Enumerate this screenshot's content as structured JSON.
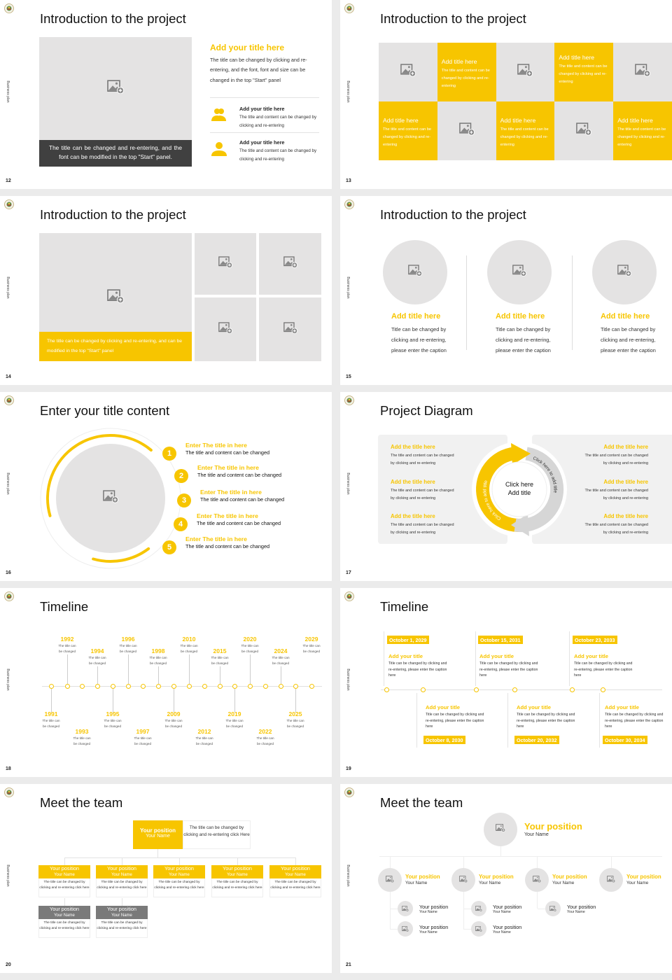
{
  "chrome": {
    "side_label": "Business plan"
  },
  "colors": {
    "accent": "#f7c500",
    "placeholder": "#e4e3e3",
    "dark_caption": "#404040",
    "gray_header": "#7a7a7a"
  },
  "slides": [
    {
      "number": "12",
      "title": "Introduction to the project",
      "caption": "The title can be changed and re-entering, and the font can be modified in the top \"Start\" panel.",
      "heading": "Add your title here",
      "body": "The title can be changed by clicking and re-entering, and the font, font and size can be changed in the top \"Start\" panel",
      "items": [
        {
          "icon": "group-icon",
          "title": "Add your title here",
          "text": "The title and content can be changed by clicking and re-entering"
        },
        {
          "icon": "user-icon",
          "title": "Add your title here",
          "text": "The title and content can be changed by clicking and re-entering"
        }
      ]
    },
    {
      "number": "13",
      "title": "Introduction to the project",
      "tiles": [
        {
          "title": "Add title here",
          "text": "The title and content can be changed by clicking and re-entering"
        },
        {
          "title": "Add title here",
          "text": "The title and content can be changed by clicking and re-entering"
        },
        {
          "title": "Add title here",
          "text": "The title and content can be changed by clicking and re-entering"
        },
        {
          "title": "Add title here",
          "text": "The title and content can be changed by clicking and re-entering"
        },
        {
          "title": "Add title here",
          "text": "The title and content can be changed by clicking and re-entering"
        }
      ]
    },
    {
      "number": "14",
      "title": "Introduction to the project",
      "caption": "The title can be changed by clicking and re-entering, and can be modified in the top \"Start\" panel"
    },
    {
      "number": "15",
      "title": "Introduction to the project",
      "columns": [
        {
          "title": "Add title here",
          "text": "Title can be changed by clicking and re-entering, please enter the caption"
        },
        {
          "title": "Add title here",
          "text": "Title can be changed by clicking and re-entering, please enter the caption"
        },
        {
          "title": "Add title here",
          "text": "Title can be changed by clicking and re-entering, please enter the caption"
        }
      ]
    },
    {
      "number": "16",
      "title": "Enter your title content",
      "items": [
        {
          "num": "1",
          "title": "Enter The title in here",
          "text": "The title and content can be changed"
        },
        {
          "num": "2",
          "title": "Enter The title in here",
          "text": "The title and content can be changed"
        },
        {
          "num": "3",
          "title": "Enter The title in here",
          "text": "The title and content can be changed"
        },
        {
          "num": "4",
          "title": "Enter The title in here",
          "text": "The title and content can be changed"
        },
        {
          "num": "5",
          "title": "Enter The title in here",
          "text": "The title and content can be changed"
        }
      ]
    },
    {
      "number": "17",
      "title": "Project Diagram",
      "center_line1": "Click here",
      "center_line2": "Add title",
      "arc_left": "Click here to add title",
      "arc_right": "Click here to add title",
      "left": [
        {
          "title": "Add the title here",
          "text": "The title and content can be changed by clicking and re-entering"
        },
        {
          "title": "Add the title here",
          "text": "The title and content can be changed by clicking and re-entering"
        },
        {
          "title": "Add the title here",
          "text": "The title and content can be changed by clicking and re-entering"
        }
      ],
      "right": [
        {
          "title": "Add the title here",
          "text": "The title and content can be changed by clicking and re-entering"
        },
        {
          "title": "Add the title here",
          "text": "The title and content can be changed by clicking and re-entering"
        },
        {
          "title": "Add the title here",
          "text": "The title and content can be changed by clicking and re-entering"
        }
      ]
    },
    {
      "number": "18",
      "title": "Timeline",
      "events": [
        {
          "year": "1991",
          "text": "The title can be changed"
        },
        {
          "year": "1992",
          "text": "The title can be changed"
        },
        {
          "year": "1993",
          "text": "The title can be changed"
        },
        {
          "year": "1994",
          "text": "The title can be changed"
        },
        {
          "year": "1995",
          "text": "The title can be changed"
        },
        {
          "year": "1996",
          "text": "The title can be changed"
        },
        {
          "year": "1997",
          "text": "The title can be changed"
        },
        {
          "year": "1998",
          "text": "The title can be changed"
        },
        {
          "year": "2009",
          "text": "The title can be changed"
        },
        {
          "year": "2010",
          "text": "The title can be changed"
        },
        {
          "year": "2012",
          "text": "The title can be changed"
        },
        {
          "year": "2015",
          "text": "The title can be changed"
        },
        {
          "year": "2019",
          "text": "The title can be changed"
        },
        {
          "year": "2020",
          "text": "The title can be changed"
        },
        {
          "year": "2022",
          "text": "The title can be changed"
        },
        {
          "year": "2024",
          "text": "The title can be changed"
        },
        {
          "year": "2025",
          "text": "The title can be changed"
        },
        {
          "year": "2029",
          "text": "The title can be changed"
        }
      ]
    },
    {
      "number": "19",
      "title": "Timeline",
      "events": [
        {
          "date": "October 1, 2029",
          "title": "Add your title",
          "text": "Title can be changed by clicking and re-entering, please enter the caption here"
        },
        {
          "date": "October 8, 2030",
          "title": "Add your title",
          "text": "Title can be changed by clicking and re-entering, please enter the caption here"
        },
        {
          "date": "October 15, 2031",
          "title": "Add your title",
          "text": "Title can be changed by clicking and re-entering, please enter the caption here"
        },
        {
          "date": "October 20, 2032",
          "title": "Add your title",
          "text": "Title can be changed by clicking and re-entering, please enter the caption here"
        },
        {
          "date": "October 23, 2033",
          "title": "Add your title",
          "text": "Title can be changed by clicking and re-entering, please enter the caption here"
        },
        {
          "date": "October 30, 2034",
          "title": "Add your title",
          "text": "Title can be changed by clicking and re-entering, please enter the caption here"
        }
      ]
    },
    {
      "number": "20",
      "title": "Meet the team",
      "lead": {
        "position": "Your position",
        "name": "Your Name",
        "text": "The title can be changed by clicking and re-entering click Here"
      },
      "members": [
        {
          "position": "Your position",
          "name": "Your Name",
          "text": "The title can be changed by clicking and re-entering click here"
        },
        {
          "position": "Your position",
          "name": "Your Name",
          "text": "The title can be changed by clicking and re-entering click here"
        },
        {
          "position": "Your position",
          "name": "Your Name",
          "text": "The title can be changed by clicking and re-entering click here"
        },
        {
          "position": "Your position",
          "name": "Your Name",
          "text": "The title can be changed by clicking and re-entering click here"
        },
        {
          "position": "Your position",
          "name": "Your Name",
          "text": "The title can be changed by clicking and re-entering click here"
        }
      ],
      "sub": [
        {
          "position": "Your position",
          "name": "Your Name",
          "text": "The title can be changed by clicking and re-entering click here"
        },
        {
          "position": "Your position",
          "name": "Your Name",
          "text": "The title can be changed by clicking and re-entering click here"
        }
      ]
    },
    {
      "number": "21",
      "title": "Meet the team",
      "lead": {
        "position": "Your position",
        "name": "Your Name"
      },
      "members": [
        {
          "position": "Your position",
          "name": "Your Name"
        },
        {
          "position": "Your position",
          "name": "Your Name"
        },
        {
          "position": "Your position",
          "name": "Your Name"
        },
        {
          "position": "Your position",
          "name": "Your Name"
        }
      ],
      "sub": [
        {
          "position": "Your position",
          "name": "Your Name"
        },
        {
          "position": "Your position",
          "name": "Your Name"
        },
        {
          "position": "Your position",
          "name": "Your Name"
        },
        {
          "position": "Your position",
          "name": "Your Name"
        },
        {
          "position": "Your position",
          "name": "Your Name"
        }
      ]
    }
  ]
}
